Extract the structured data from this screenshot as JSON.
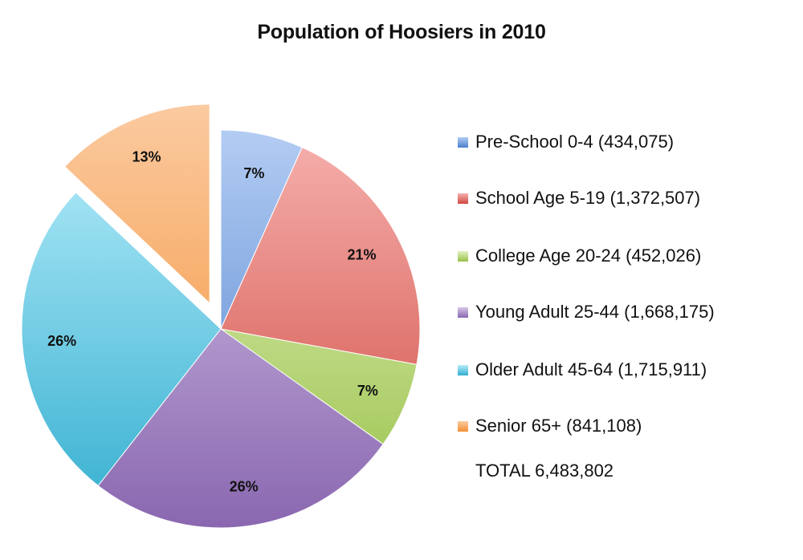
{
  "chart_data": {
    "type": "pie",
    "title": "Population of Hoosiers in 2010",
    "slices": [
      {
        "label": "7%",
        "legend": "Pre-School  0-4  (434,075)",
        "value": 434075,
        "color": "#5d8fd4",
        "exploded": false
      },
      {
        "label": "21%",
        "legend": "School Age  5-19  (1,372,507)",
        "value": 1372507,
        "color": "#d9534f",
        "exploded": false
      },
      {
        "label": "7%",
        "legend": "College Age  20-24  (452,026)",
        "value": 452026,
        "color": "#a9cf5c",
        "exploded": false
      },
      {
        "label": "26%",
        "legend": "Young Adult  25-44  (1,668,175)",
        "value": 1668175,
        "color": "#9a7bbf",
        "exploded": false
      },
      {
        "label": "26%",
        "legend": "Older Adult  45-64  (1,715,911)",
        "value": 1715911,
        "color": "#45bcd9",
        "exploded": false
      },
      {
        "label": "13%",
        "legend": "Senior  65+  (841,108)",
        "value": 841108,
        "color": "#f79a45",
        "exploded": true
      }
    ],
    "legend_placement": "right",
    "total": "TOTAL  6,483,802"
  },
  "gradients": [
    {
      "light": "#b3ccf3",
      "dark": "#4a7fcb"
    },
    {
      "light": "#f6b1ae",
      "dark": "#cf473f"
    },
    {
      "light": "#e3f2c2",
      "dark": "#99c148"
    },
    {
      "light": "#d6c6e8",
      "dark": "#8a67b0"
    },
    {
      "light": "#b5ecfa",
      "dark": "#33aecf"
    },
    {
      "light": "#fbcaa0",
      "dark": "#f39034"
    }
  ]
}
